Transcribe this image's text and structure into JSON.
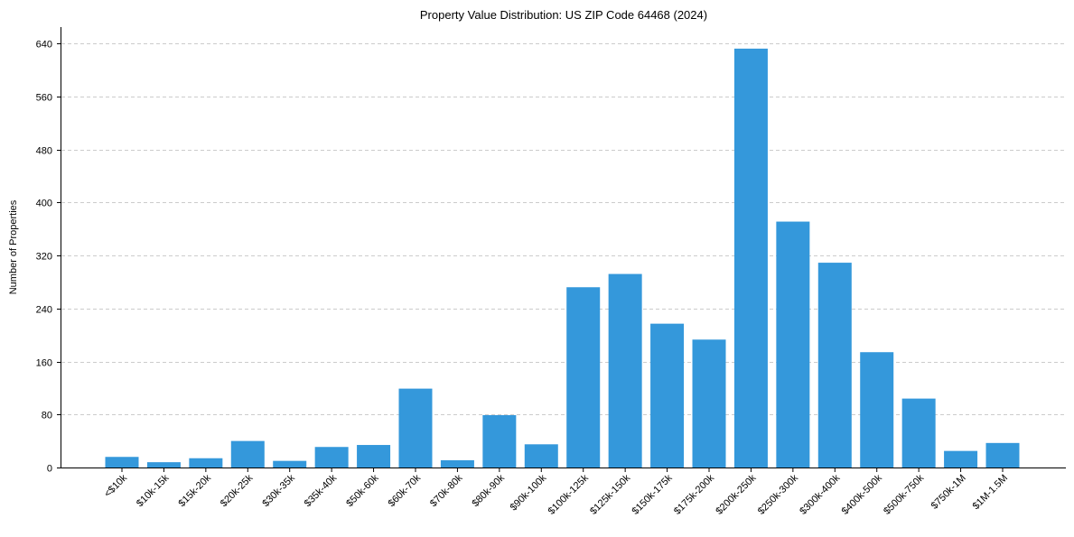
{
  "chart_data": {
    "type": "bar",
    "title": "Property Value Distribution: US ZIP Code 64468 (2024)",
    "xlabel": "",
    "ylabel": "Number of Properties",
    "ylim": [
      0,
      665
    ],
    "yticks": [
      0,
      80,
      160,
      240,
      320,
      400,
      480,
      560,
      640
    ],
    "grid": "y-dashed",
    "bar_color": "#3498db",
    "categories": [
      "<$10k",
      "$10k-15k",
      "$15k-20k",
      "$20k-25k",
      "$30k-35k",
      "$35k-40k",
      "$50k-60k",
      "$60k-70k",
      "$70k-80k",
      "$80k-90k",
      "$90k-100k",
      "$100k-125k",
      "$125k-150k",
      "$150k-175k",
      "$175k-200k",
      "$200k-250k",
      "$250k-300k",
      "$300k-400k",
      "$400k-500k",
      "$500k-750k",
      "$750k-1M",
      "$1M-1.5M"
    ],
    "values": [
      16,
      8,
      14,
      40,
      10,
      31,
      34,
      119,
      11,
      79,
      35,
      272,
      292,
      217,
      193,
      632,
      371,
      309,
      174,
      104,
      25,
      37
    ]
  }
}
